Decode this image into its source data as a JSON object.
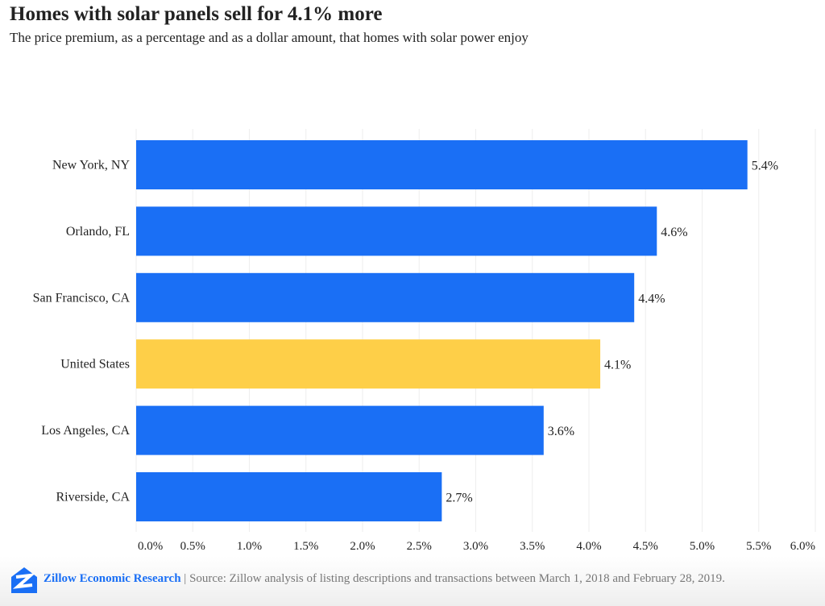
{
  "title": "Homes with solar panels sell for 4.1% more",
  "subtitle": "The price premium, as a percentage and as a dollar amount, that homes with solar power enjoy",
  "footer": {
    "brand": "Zillow Economic Research",
    "separator": " | ",
    "source": "Source: Zillow analysis of listing descriptions and transactions between March 1, 2018 and February 28, 2019.",
    "logo_icon": "zillow-logo-icon"
  },
  "colors": {
    "bar": "#1a6ff5",
    "highlight": "#fecf48",
    "grid": "#eeeeee"
  },
  "chart_data": {
    "type": "bar",
    "orientation": "horizontal",
    "categories": [
      "New York, NY",
      "Orlando, FL",
      "San Francisco, CA",
      "United States",
      "Los Angeles, CA",
      "Riverside, CA"
    ],
    "values": [
      5.4,
      4.6,
      4.4,
      4.1,
      3.6,
      2.7
    ],
    "data_labels": [
      "5.4%",
      "4.6%",
      "4.4%",
      "4.1%",
      "3.6%",
      "2.7%"
    ],
    "highlight": "United States",
    "xlim": [
      0,
      6
    ],
    "xticks": [
      "0.0%",
      "0.5%",
      "1.0%",
      "1.5%",
      "2.0%",
      "2.5%",
      "3.0%",
      "3.5%",
      "4.0%",
      "4.5%",
      "5.0%",
      "5.5%",
      "6.0%"
    ],
    "grid": true,
    "unit": "%"
  }
}
